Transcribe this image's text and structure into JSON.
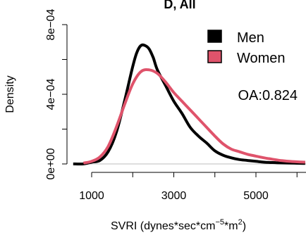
{
  "chart_data": {
    "type": "line",
    "title": "D, All",
    "xlabel": {
      "prefix": "SVRI (dynes*sec*cm",
      "sup1": "−5",
      "mid": "*m",
      "sup2": "2",
      "suffix": ")"
    },
    "ylabel": "Density",
    "xlim": [
      500,
      6200
    ],
    "ylim": [
      0,
      0.00085
    ],
    "xticks": [
      1000,
      3000,
      5000
    ],
    "xtick_minor": [
      2000,
      4000,
      6000
    ],
    "xtick_labels": [
      "1000",
      "3000",
      "5000"
    ],
    "yticks": [
      0,
      0.0002,
      0.0004,
      0.0006,
      0.0008
    ],
    "ytick_labels": [
      "0e+00",
      "4e−04",
      "8e−04"
    ],
    "ytick_label_values": [
      0,
      0.0004,
      0.0008
    ],
    "annotation": "OA:0.824",
    "legend": {
      "position": "top-right",
      "entries": [
        "Men",
        "Women"
      ]
    },
    "series": [
      {
        "name": "Men",
        "color": "#000000",
        "x": [
          550,
          800,
          1000,
          1200,
          1400,
          1600,
          1800,
          2000,
          2100,
          2200,
          2300,
          2400,
          2500,
          2600,
          2800,
          3000,
          3200,
          3400,
          3600,
          3800,
          4000,
          4200,
          4400,
          4600,
          4800,
          5000,
          5200,
          5400,
          5600,
          5800,
          6000,
          6200
        ],
        "y": [
          0,
          0,
          1e-05,
          2e-05,
          7e-05,
          0.00018,
          0.00036,
          0.00056,
          0.00064,
          0.00068,
          0.00068,
          0.00066,
          0.00061,
          0.00054,
          0.00045,
          0.00036,
          0.00029,
          0.00021,
          0.00016,
          0.00012,
          7.5e-05,
          5e-05,
          3.5e-05,
          2.5e-05,
          2e-05,
          1.5e-05,
          1e-05,
          8e-06,
          6e-06,
          5e-06,
          4e-06,
          3e-06
        ]
      },
      {
        "name": "Women",
        "color": "#df536b",
        "x": [
          800,
          1000,
          1200,
          1400,
          1600,
          1800,
          2000,
          2200,
          2400,
          2600,
          2800,
          3000,
          3200,
          3400,
          3600,
          3800,
          4000,
          4200,
          4400,
          4600,
          4800,
          5000,
          5200,
          5400,
          5600,
          5800,
          6000,
          6200
        ],
        "y": [
          5e-06,
          1.5e-05,
          4e-05,
          0.0001,
          0.00021,
          0.00034,
          0.00046,
          0.00053,
          0.00054,
          0.00052,
          0.00047,
          0.00041,
          0.00036,
          0.00031,
          0.00026,
          0.00021,
          0.00016,
          0.000115,
          8.5e-05,
          7e-05,
          5.5e-05,
          4.5e-05,
          3.5e-05,
          2.7e-05,
          2e-05,
          1.5e-05,
          1.2e-05,
          1e-05
        ]
      }
    ]
  }
}
